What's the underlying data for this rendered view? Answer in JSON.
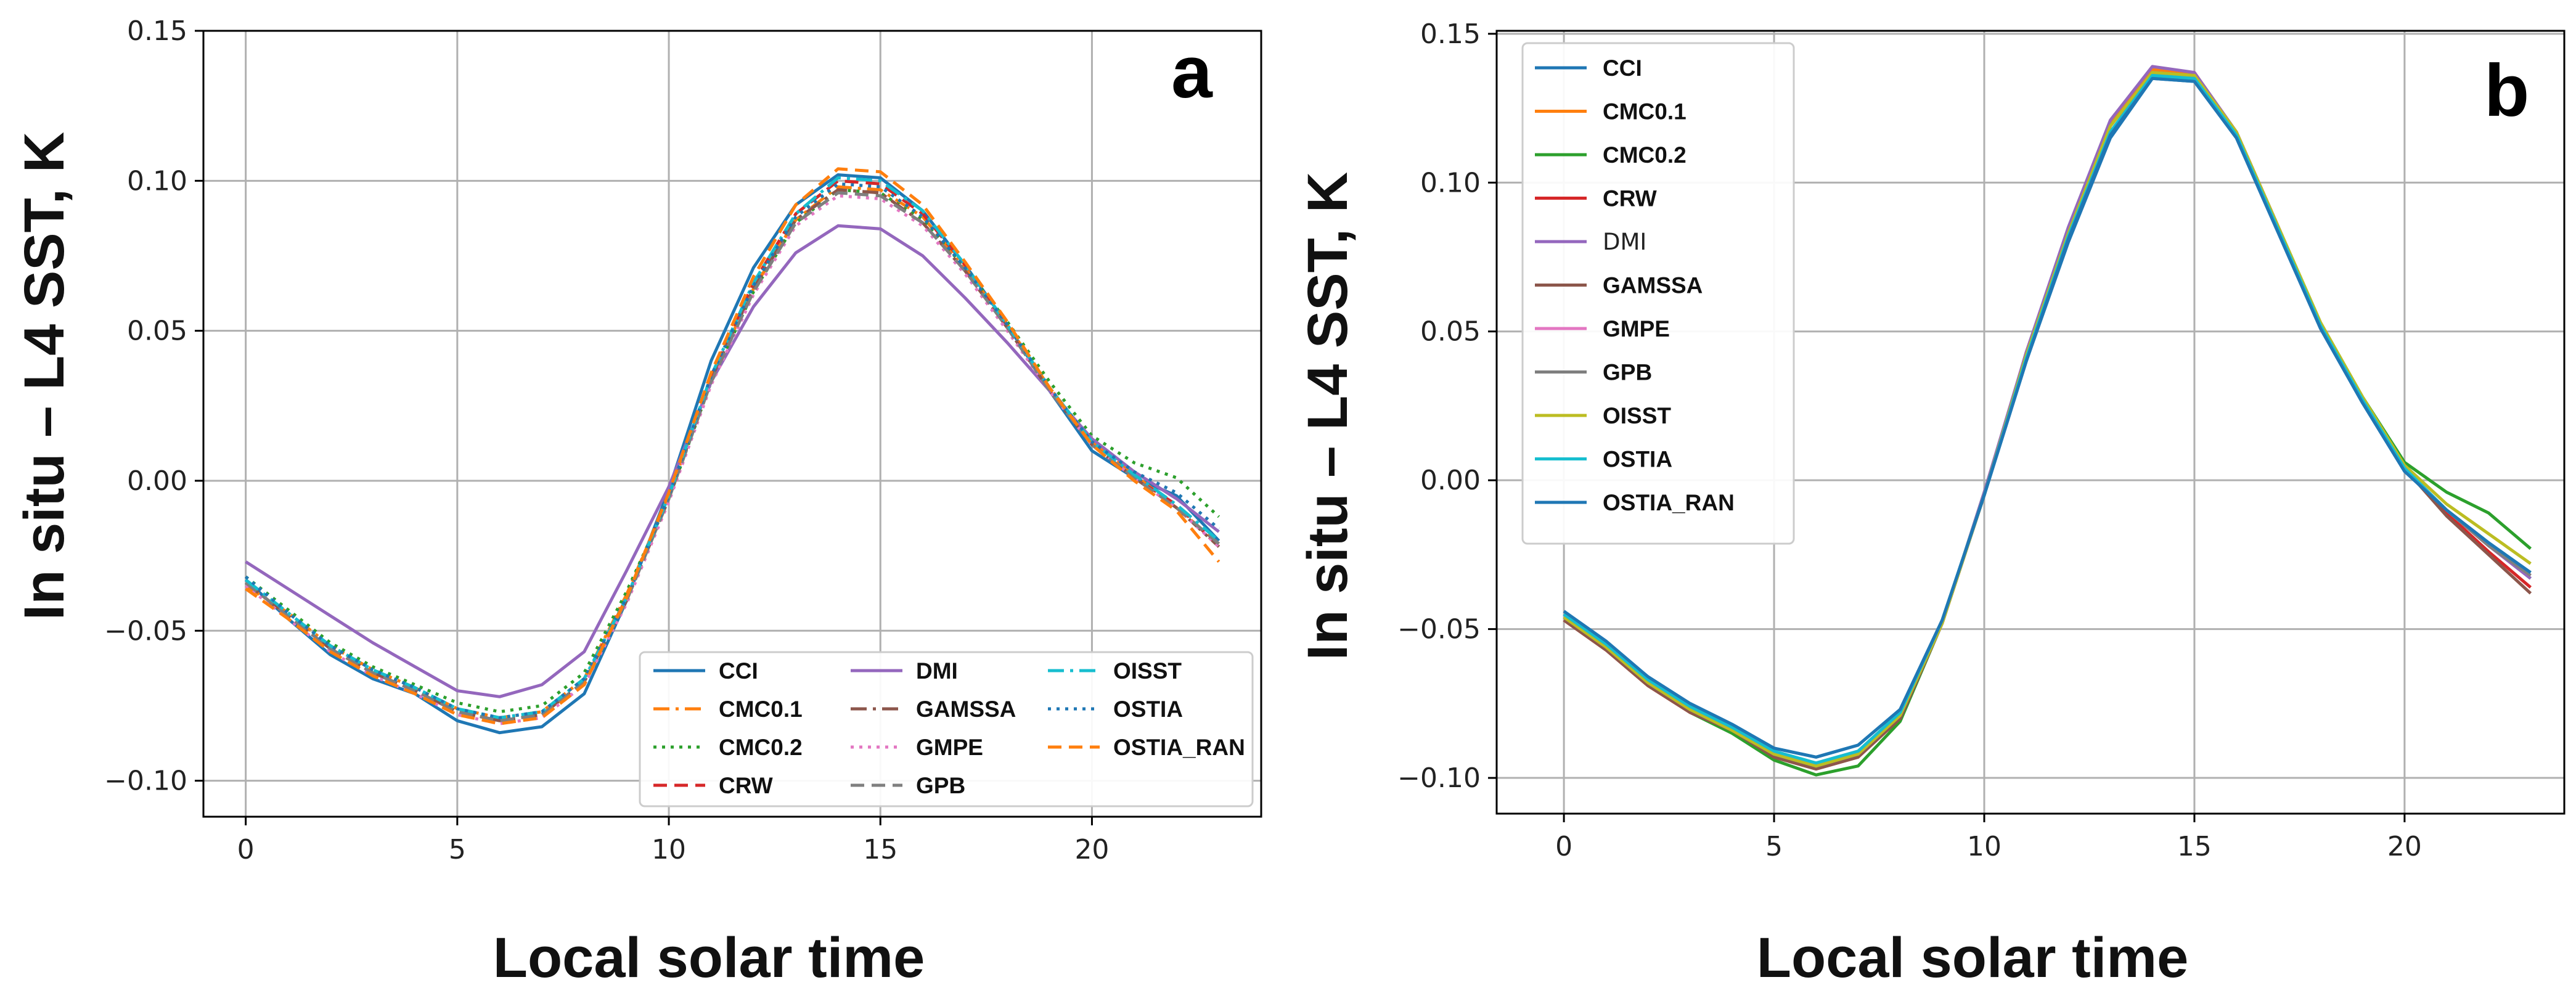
{
  "chart_data": [
    {
      "panel": "a",
      "type": "line",
      "title": "",
      "xlabel": "Local solar time",
      "ylabel": "In situ – L4 SST, K",
      "xlim": [
        -1,
        24
      ],
      "ylim": [
        -0.112,
        0.15
      ],
      "xticks": [
        0,
        5,
        10,
        15,
        20
      ],
      "yticks": [
        -0.1,
        -0.05,
        0.0,
        0.05,
        0.1,
        0.15
      ],
      "ytick_labels": [
        "−0.10",
        "−0.05",
        "0.00",
        "0.05",
        "0.10",
        "0.15"
      ],
      "grid": true,
      "legend_position": "lower-right",
      "legend_columns": 3,
      "x": [
        0,
        1,
        2,
        3,
        4,
        5,
        6,
        7,
        8,
        9,
        10,
        11,
        12,
        13,
        14,
        15,
        16,
        17,
        18,
        19,
        20,
        21,
        22,
        23
      ],
      "series": [
        {
          "name": "CCI",
          "color": "#1f77b4",
          "dash": "solid",
          "values": [
            -0.033,
            -0.046,
            -0.058,
            -0.066,
            -0.071,
            -0.08,
            -0.084,
            -0.082,
            -0.071,
            -0.04,
            -0.003,
            0.04,
            0.071,
            0.092,
            0.102,
            0.101,
            0.09,
            0.072,
            0.052,
            0.03,
            0.01,
            0.001,
            -0.005,
            -0.02
          ]
        },
        {
          "name": "CMC0.1",
          "color": "#ff7f0e",
          "dash": "dashdot",
          "values": [
            -0.035,
            -0.044,
            -0.055,
            -0.063,
            -0.069,
            -0.076,
            -0.079,
            -0.077,
            -0.066,
            -0.038,
            -0.005,
            0.034,
            0.064,
            0.087,
            0.098,
            0.097,
            0.088,
            0.071,
            0.052,
            0.031,
            0.013,
            0.002,
            -0.009,
            -0.021
          ]
        },
        {
          "name": "CMC0.2",
          "color": "#2ca02c",
          "dash": "dotted",
          "values": [
            -0.032,
            -0.043,
            -0.054,
            -0.062,
            -0.068,
            -0.074,
            -0.077,
            -0.075,
            -0.064,
            -0.037,
            -0.006,
            0.033,
            0.063,
            0.086,
            0.097,
            0.096,
            0.087,
            0.071,
            0.053,
            0.033,
            0.015,
            0.006,
            0.001,
            -0.012
          ]
        },
        {
          "name": "CRW",
          "color": "#d62728",
          "dash": "dashed",
          "values": [
            -0.034,
            -0.045,
            -0.056,
            -0.064,
            -0.07,
            -0.077,
            -0.08,
            -0.078,
            -0.067,
            -0.039,
            -0.005,
            0.035,
            0.066,
            0.089,
            0.1,
            0.099,
            0.089,
            0.072,
            0.052,
            0.031,
            0.012,
            0.001,
            -0.008,
            -0.022
          ]
        },
        {
          "name": "DMI",
          "color": "#9467bd",
          "dash": "solid",
          "values": [
            -0.027,
            -0.036,
            -0.045,
            -0.054,
            -0.062,
            -0.07,
            -0.072,
            -0.068,
            -0.057,
            -0.03,
            -0.002,
            0.033,
            0.058,
            0.076,
            0.085,
            0.084,
            0.075,
            0.061,
            0.046,
            0.03,
            0.014,
            0.003,
            -0.006,
            -0.017
          ]
        },
        {
          "name": "GAMSSA",
          "color": "#8c564b",
          "dash": "dashdot",
          "values": [
            -0.034,
            -0.045,
            -0.056,
            -0.064,
            -0.07,
            -0.077,
            -0.08,
            -0.078,
            -0.067,
            -0.04,
            -0.006,
            0.034,
            0.064,
            0.087,
            0.097,
            0.096,
            0.086,
            0.07,
            0.051,
            0.03,
            0.012,
            0.001,
            -0.009,
            -0.022
          ]
        },
        {
          "name": "GMPE",
          "color": "#e377c2",
          "dash": "dotted",
          "values": [
            -0.035,
            -0.046,
            -0.057,
            -0.065,
            -0.071,
            -0.078,
            -0.081,
            -0.079,
            -0.068,
            -0.041,
            -0.007,
            0.032,
            0.062,
            0.085,
            0.095,
            0.094,
            0.085,
            0.069,
            0.05,
            0.03,
            0.012,
            0.001,
            -0.009,
            -0.022
          ]
        },
        {
          "name": "GPB",
          "color": "#7f7f7f",
          "dash": "dashed",
          "values": [
            -0.034,
            -0.045,
            -0.056,
            -0.064,
            -0.07,
            -0.077,
            -0.08,
            -0.078,
            -0.067,
            -0.04,
            -0.006,
            0.033,
            0.063,
            0.086,
            0.096,
            0.095,
            0.086,
            0.07,
            0.051,
            0.03,
            0.012,
            0.001,
            -0.009,
            -0.021
          ]
        },
        {
          "name": "OISST",
          "color": "#17becf",
          "dash": "dashdot",
          "values": [
            -0.033,
            -0.044,
            -0.055,
            -0.063,
            -0.069,
            -0.076,
            -0.079,
            -0.077,
            -0.066,
            -0.039,
            -0.005,
            0.035,
            0.066,
            0.089,
            0.101,
            0.1,
            0.09,
            0.072,
            0.052,
            0.031,
            0.013,
            0.002,
            -0.008,
            -0.02
          ]
        },
        {
          "name": "OSTIA",
          "color": "#1f77b4",
          "dash": "dotted",
          "values": [
            -0.032,
            -0.044,
            -0.055,
            -0.063,
            -0.069,
            -0.076,
            -0.079,
            -0.077,
            -0.066,
            -0.039,
            -0.005,
            0.035,
            0.065,
            0.088,
            0.099,
            0.098,
            0.088,
            0.071,
            0.052,
            0.031,
            0.013,
            0.003,
            -0.004,
            -0.016
          ]
        },
        {
          "name": "OSTIA_RAN",
          "color": "#ff7f0e",
          "dash": "dashed",
          "values": [
            -0.036,
            -0.046,
            -0.057,
            -0.065,
            -0.071,
            -0.078,
            -0.081,
            -0.079,
            -0.068,
            -0.039,
            -0.004,
            0.036,
            0.068,
            0.092,
            0.104,
            0.103,
            0.092,
            0.073,
            0.053,
            0.031,
            0.012,
            0.0,
            -0.01,
            -0.027
          ]
        }
      ]
    },
    {
      "panel": "b",
      "type": "line",
      "title": "",
      "xlabel": "Local solar time",
      "ylabel": "In situ – L4 SST, K",
      "xlim": [
        -1.6,
        23.8
      ],
      "ylim": [
        -0.112,
        0.151
      ],
      "xticks": [
        0,
        5,
        10,
        15,
        20
      ],
      "yticks": [
        -0.1,
        -0.05,
        0.0,
        0.05,
        0.1,
        0.15
      ],
      "ytick_labels": [
        "−0.10",
        "−0.05",
        "0.00",
        "0.05",
        "0.10",
        "0.15"
      ],
      "grid": true,
      "legend_position": "top-left",
      "legend_columns": 1,
      "x": [
        0,
        1,
        2,
        3,
        4,
        5,
        6,
        7,
        8,
        9,
        10,
        11,
        12,
        13,
        14,
        15,
        16,
        17,
        18,
        19,
        20,
        21,
        22,
        23
      ],
      "series": [
        {
          "name": "CCI",
          "color": "#1f77b4",
          "dash": "solid",
          "values": [
            -0.045,
            -0.055,
            -0.066,
            -0.075,
            -0.082,
            -0.09,
            -0.093,
            -0.089,
            -0.077,
            -0.047,
            -0.005,
            0.04,
            0.08,
            0.115,
            0.135,
            0.134,
            0.115,
            0.083,
            0.051,
            0.026,
            0.003,
            -0.01,
            -0.021,
            -0.033
          ]
        },
        {
          "name": "CMC0.1",
          "color": "#ff7f0e",
          "dash": "solid",
          "values": [
            -0.047,
            -0.057,
            -0.069,
            -0.078,
            -0.084,
            -0.093,
            -0.096,
            -0.092,
            -0.08,
            -0.048,
            -0.005,
            0.043,
            0.084,
            0.12,
            0.138,
            0.137,
            0.117,
            0.085,
            0.052,
            0.027,
            0.004,
            -0.01,
            -0.022,
            -0.032
          ]
        },
        {
          "name": "CMC0.2",
          "color": "#2ca02c",
          "dash": "solid",
          "values": [
            -0.046,
            -0.056,
            -0.068,
            -0.078,
            -0.085,
            -0.094,
            -0.099,
            -0.096,
            -0.081,
            -0.048,
            -0.004,
            0.042,
            0.082,
            0.117,
            0.136,
            0.135,
            0.117,
            0.085,
            0.053,
            0.028,
            0.006,
            -0.004,
            -0.011,
            -0.023
          ]
        },
        {
          "name": "CRW",
          "color": "#d62728",
          "dash": "solid",
          "values": [
            -0.047,
            -0.057,
            -0.069,
            -0.078,
            -0.084,
            -0.093,
            -0.097,
            -0.093,
            -0.08,
            -0.048,
            -0.005,
            0.043,
            0.084,
            0.119,
            0.137,
            0.136,
            0.117,
            0.085,
            0.052,
            0.027,
            0.004,
            -0.011,
            -0.024,
            -0.036
          ]
        },
        {
          "name": "DMI",
          "color": "#9467bd",
          "dash": "solid",
          "values": [
            -0.046,
            -0.056,
            -0.068,
            -0.077,
            -0.083,
            -0.092,
            -0.095,
            -0.091,
            -0.079,
            -0.048,
            -0.004,
            0.043,
            0.085,
            0.121,
            0.139,
            0.137,
            0.117,
            0.085,
            0.052,
            0.027,
            0.004,
            -0.01,
            -0.022,
            -0.033
          ]
        },
        {
          "name": "GAMSSA",
          "color": "#8c564b",
          "dash": "solid",
          "values": [
            -0.047,
            -0.057,
            -0.069,
            -0.078,
            -0.084,
            -0.093,
            -0.097,
            -0.093,
            -0.08,
            -0.048,
            -0.005,
            0.042,
            0.083,
            0.119,
            0.137,
            0.136,
            0.117,
            0.085,
            0.052,
            0.027,
            0.004,
            -0.012,
            -0.025,
            -0.038
          ]
        },
        {
          "name": "GMPE",
          "color": "#e377c2",
          "dash": "solid",
          "values": [
            -0.046,
            -0.056,
            -0.068,
            -0.077,
            -0.084,
            -0.092,
            -0.096,
            -0.092,
            -0.079,
            -0.048,
            -0.005,
            0.042,
            0.083,
            0.119,
            0.137,
            0.136,
            0.117,
            0.085,
            0.052,
            0.027,
            0.004,
            -0.01,
            -0.022,
            -0.032
          ]
        },
        {
          "name": "GPB",
          "color": "#7f7f7f",
          "dash": "solid",
          "values": [
            -0.046,
            -0.056,
            -0.068,
            -0.077,
            -0.084,
            -0.092,
            -0.096,
            -0.092,
            -0.079,
            -0.048,
            -0.005,
            0.042,
            0.083,
            0.119,
            0.137,
            0.136,
            0.117,
            0.085,
            0.052,
            0.027,
            0.004,
            -0.01,
            -0.022,
            -0.032
          ]
        },
        {
          "name": "OISST",
          "color": "#bcbd22",
          "dash": "solid",
          "values": [
            -0.046,
            -0.056,
            -0.068,
            -0.077,
            -0.084,
            -0.092,
            -0.096,
            -0.092,
            -0.079,
            -0.048,
            -0.005,
            0.042,
            0.083,
            0.119,
            0.137,
            0.136,
            0.117,
            0.085,
            0.053,
            0.028,
            0.005,
            -0.008,
            -0.018,
            -0.028
          ]
        },
        {
          "name": "OSTIA",
          "color": "#17becf",
          "dash": "solid",
          "values": [
            -0.045,
            -0.055,
            -0.067,
            -0.076,
            -0.083,
            -0.091,
            -0.095,
            -0.091,
            -0.078,
            -0.047,
            -0.005,
            0.041,
            0.082,
            0.117,
            0.136,
            0.135,
            0.116,
            0.084,
            0.052,
            0.027,
            0.004,
            -0.01,
            -0.021,
            -0.031
          ]
        },
        {
          "name": "OSTIA_RAN",
          "color": "#1f77b4",
          "dash": "solid",
          "values": [
            -0.044,
            -0.054,
            -0.066,
            -0.075,
            -0.082,
            -0.09,
            -0.093,
            -0.089,
            -0.077,
            -0.047,
            -0.005,
            0.04,
            0.081,
            0.116,
            0.135,
            0.134,
            0.115,
            0.083,
            0.051,
            0.026,
            0.003,
            -0.01,
            -0.021,
            -0.031
          ]
        }
      ]
    }
  ]
}
